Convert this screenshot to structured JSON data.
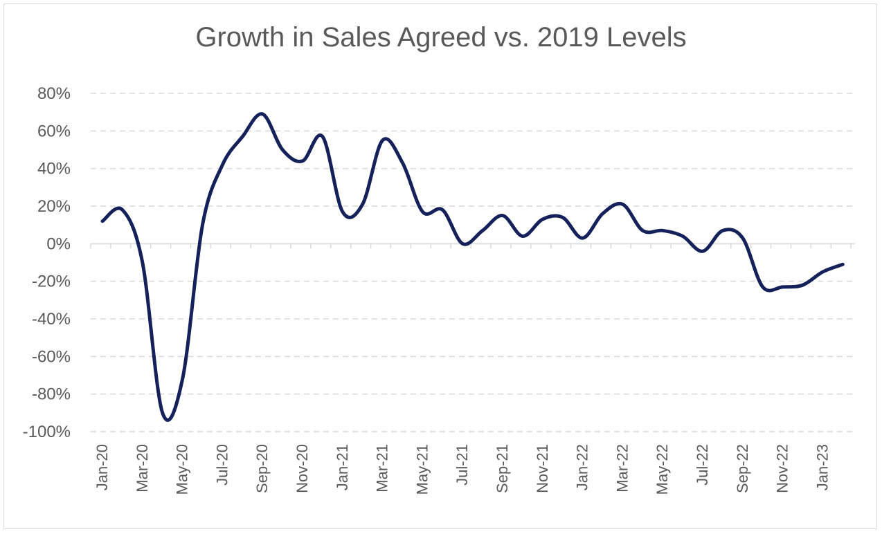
{
  "chart_data": {
    "type": "line",
    "title": "Growth in Sales Agreed vs. 2019 Levels",
    "xlabel": "",
    "ylabel": "",
    "ylim": [
      -1.0,
      0.8
    ],
    "y_ticks": [
      "80%",
      "60%",
      "40%",
      "20%",
      "0%",
      "-20%",
      "-40%",
      "-60%",
      "-80%",
      "-100%"
    ],
    "y_tick_values": [
      0.8,
      0.6,
      0.4,
      0.2,
      0.0,
      -0.2,
      -0.4,
      -0.6,
      -0.8,
      -1.0
    ],
    "x_ticks": [
      "Jan-20",
      "Mar-20",
      "May-20",
      "Jul-20",
      "Sep-20",
      "Nov-20",
      "Jan-21",
      "Mar-21",
      "May-21",
      "Jul-21",
      "Sep-21",
      "Nov-21",
      "Jan-22",
      "Mar-22",
      "May-22",
      "Jul-22",
      "Sep-22",
      "Nov-22",
      "Jan-23"
    ],
    "grid": true,
    "line_color": "#14215a",
    "series": [
      {
        "name": "",
        "x": [
          "Jan-20",
          "Feb-20",
          "Mar-20",
          "Apr-20",
          "May-20",
          "Jun-20",
          "Jul-20",
          "Aug-20",
          "Sep-20",
          "Oct-20",
          "Nov-20",
          "Dec-20",
          "Jan-21",
          "Feb-21",
          "Mar-21",
          "Apr-21",
          "May-21",
          "Jun-21",
          "Jul-21",
          "Aug-21",
          "Sep-21",
          "Oct-21",
          "Nov-21",
          "Dec-21",
          "Jan-22",
          "Feb-22",
          "Mar-22",
          "Apr-22",
          "May-22",
          "Jun-22",
          "Jul-22",
          "Aug-22",
          "Sep-22",
          "Oct-22",
          "Nov-22",
          "Dec-22",
          "Jan-23",
          "Feb-23"
        ],
        "values": [
          0.12,
          0.18,
          -0.1,
          -0.9,
          -0.72,
          0.1,
          0.42,
          0.57,
          0.69,
          0.5,
          0.44,
          0.57,
          0.17,
          0.21,
          0.55,
          0.43,
          0.17,
          0.18,
          0.0,
          0.07,
          0.15,
          0.04,
          0.13,
          0.14,
          0.03,
          0.16,
          0.21,
          0.07,
          0.07,
          0.04,
          -0.04,
          0.07,
          0.03,
          -0.23,
          -0.23,
          -0.22,
          -0.15,
          -0.11
        ]
      }
    ]
  }
}
